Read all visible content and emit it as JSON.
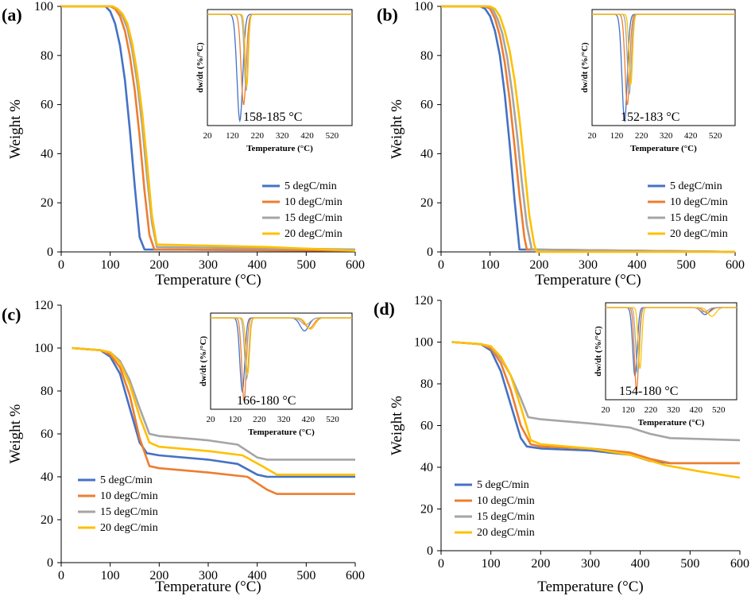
{
  "chart_data": [
    {
      "panel": "(a)",
      "type": "line",
      "xlabel": "Temperature (°C)",
      "ylabel": "Weight %",
      "xlim": [
        0,
        600
      ],
      "ylim": [
        0,
        100
      ],
      "xticks": [
        0,
        100,
        200,
        300,
        400,
        500,
        600
      ],
      "yticks": [
        0,
        20,
        40,
        60,
        80,
        100
      ],
      "legend_position": "right",
      "series": [
        {
          "name": "5 degC/min",
          "color": "#4472C4",
          "x": [
            0,
            90,
            100,
            110,
            120,
            130,
            140,
            150,
            160,
            170,
            600
          ],
          "y": [
            100,
            100,
            98,
            93,
            84,
            70,
            50,
            27,
            6,
            1,
            0.5
          ]
        },
        {
          "name": "10 degC/min",
          "color": "#ED7D31",
          "x": [
            0,
            100,
            110,
            120,
            130,
            140,
            150,
            160,
            170,
            180,
            190,
            600
          ],
          "y": [
            100,
            100,
            99,
            96,
            90,
            80,
            66,
            47,
            25,
            7,
            1,
            0.5
          ]
        },
        {
          "name": "15 degC/min",
          "color": "#A5A5A5",
          "x": [
            0,
            105,
            115,
            125,
            135,
            145,
            155,
            165,
            175,
            185,
            195,
            600
          ],
          "y": [
            100,
            100,
            99,
            96,
            91,
            82,
            69,
            52,
            31,
            12,
            2,
            1
          ]
        },
        {
          "name": "20 degC/min",
          "color": "#FFC000",
          "x": [
            0,
            105,
            115,
            125,
            135,
            145,
            155,
            165,
            175,
            185,
            195,
            420,
            600
          ],
          "y": [
            100,
            100,
            99,
            97,
            93,
            85,
            73,
            57,
            37,
            15,
            3,
            2,
            0.5
          ]
        }
      ],
      "inset": {
        "ylabel": "dw/dt (%/°C)",
        "xlabel": "Temperature (°C)",
        "xticks": [
          20,
          120,
          220,
          320,
          420,
          520
        ],
        "xlim": [
          20,
          600
        ],
        "annotation": "158-185 °C",
        "peaks": [
          {
            "peak_x": 150,
            "depth": 1.0,
            "width": 16
          },
          {
            "peak_x": 165,
            "depth": 0.85,
            "width": 14
          },
          {
            "peak_x": 175,
            "depth": 0.72,
            "width": 10
          },
          {
            "peak_x": 178,
            "depth": 0.68,
            "width": 9
          }
        ]
      }
    },
    {
      "panel": "(b)",
      "type": "line",
      "xlabel": "Temperature (°C)",
      "ylabel": "Weight %",
      "xlim": [
        0,
        600
      ],
      "ylim": [
        0,
        100
      ],
      "xticks": [
        0,
        100,
        200,
        300,
        400,
        500,
        600
      ],
      "yticks": [
        0,
        20,
        40,
        60,
        80,
        100
      ],
      "legend_position": "right",
      "series": [
        {
          "name": "5 degC/min",
          "color": "#4472C4",
          "x": [
            0,
            80,
            90,
            100,
            110,
            120,
            130,
            140,
            150,
            160,
            600
          ],
          "y": [
            100,
            100,
            99,
            96,
            90,
            80,
            64,
            44,
            21,
            1,
            0
          ]
        },
        {
          "name": "10 degC/min",
          "color": "#ED7D31",
          "x": [
            0,
            90,
            100,
            110,
            120,
            130,
            140,
            150,
            160,
            170,
            175,
            600
          ],
          "y": [
            100,
            100,
            99,
            95,
            88,
            77,
            62,
            43,
            23,
            6,
            1,
            0
          ]
        },
        {
          "name": "15 degC/min",
          "color": "#A5A5A5",
          "x": [
            0,
            95,
            105,
            115,
            125,
            135,
            145,
            155,
            165,
            175,
            185,
            600
          ],
          "y": [
            100,
            100,
            99,
            95,
            89,
            79,
            65,
            48,
            28,
            11,
            1,
            0
          ]
        },
        {
          "name": "20 degC/min",
          "color": "#FFC000",
          "x": [
            0,
            100,
            110,
            120,
            130,
            140,
            150,
            160,
            170,
            180,
            190,
            195,
            600
          ],
          "y": [
            100,
            100,
            99,
            96,
            90,
            82,
            70,
            54,
            35,
            15,
            3,
            0,
            0
          ]
        }
      ],
      "inset": {
        "ylabel": "dw/dt (%/°C)",
        "xlabel": "Temperature (°C)",
        "xticks": [
          20,
          120,
          220,
          320,
          420,
          520
        ],
        "xlim": [
          20,
          600
        ],
        "annotation": "152-183 °C",
        "peaks": [
          {
            "peak_x": 152,
            "depth": 1.0,
            "width": 15
          },
          {
            "peak_x": 163,
            "depth": 0.85,
            "width": 13
          },
          {
            "peak_x": 171,
            "depth": 0.75,
            "width": 11
          },
          {
            "peak_x": 177,
            "depth": 0.66,
            "width": 10
          }
        ]
      }
    },
    {
      "panel": "(c)",
      "type": "line",
      "xlabel": "Temperature (°C)",
      "ylabel": "Weight %",
      "xlim": [
        0,
        600
      ],
      "ylim": [
        0,
        120
      ],
      "xticks": [
        0,
        100,
        200,
        300,
        400,
        500,
        600
      ],
      "yticks": [
        0,
        20,
        40,
        60,
        80,
        100,
        120
      ],
      "legend_position": "bottom-left",
      "series": [
        {
          "name": "5 degC/min",
          "color": "#4472C4",
          "x": [
            22,
            80,
            100,
            120,
            140,
            160,
            175,
            200,
            300,
            360,
            400,
            420,
            600
          ],
          "y": [
            100,
            99,
            96,
            88,
            72,
            56,
            51,
            50,
            48,
            46,
            41,
            40,
            40
          ]
        },
        {
          "name": "10 degC/min",
          "color": "#ED7D31",
          "x": [
            22,
            80,
            100,
            120,
            140,
            160,
            180,
            200,
            300,
            380,
            420,
            440,
            600
          ],
          "y": [
            100,
            99,
            97,
            91,
            78,
            58,
            45,
            44,
            42,
            40,
            34,
            32,
            32
          ]
        },
        {
          "name": "15 degC/min",
          "color": "#A5A5A5",
          "x": [
            22,
            80,
            100,
            120,
            140,
            160,
            180,
            200,
            300,
            360,
            400,
            420,
            600
          ],
          "y": [
            100,
            99,
            98,
            94,
            85,
            72,
            60,
            59,
            57,
            55,
            49,
            48,
            48
          ]
        },
        {
          "name": "20 degC/min",
          "color": "#FFC000",
          "x": [
            22,
            80,
            100,
            120,
            140,
            160,
            180,
            200,
            300,
            370,
            410,
            440,
            600
          ],
          "y": [
            100,
            99,
            98,
            93,
            83,
            68,
            56,
            54,
            52,
            50,
            45,
            41,
            41
          ]
        }
      ],
      "inset": {
        "ylabel": "dw/dt (%/°C)",
        "xlabel": "Temperature (°C)",
        "xticks": [
          20,
          120,
          220,
          320,
          420,
          520
        ],
        "xlim": [
          20,
          600
        ],
        "annotation": "166-180 °C",
        "peaks": [
          {
            "peak_x": 150,
            "depth": 0.85,
            "width": 14,
            "peak2_x": 405,
            "depth2": 0.15
          },
          {
            "peak_x": 157,
            "depth": 0.95,
            "width": 13,
            "peak2_x": 425,
            "depth2": 0.12
          },
          {
            "peak_x": 168,
            "depth": 0.7,
            "width": 12,
            "peak2_x": 410,
            "depth2": 0.08
          },
          {
            "peak_x": 172,
            "depth": 0.65,
            "width": 11,
            "peak2_x": 430,
            "depth2": 0.13
          }
        ]
      }
    },
    {
      "panel": "(d)",
      "type": "line",
      "xlabel": "Temperature (°C)",
      "ylabel": "Weight %",
      "xlim": [
        0,
        600
      ],
      "ylim": [
        0,
        120
      ],
      "xticks": [
        0,
        100,
        200,
        300,
        400,
        500,
        600
      ],
      "yticks": [
        0,
        20,
        40,
        60,
        80,
        100,
        120
      ],
      "legend_position": "bottom-left",
      "series": [
        {
          "name": "5 degC/min",
          "color": "#4472C4",
          "x": [
            22,
            80,
            100,
            120,
            140,
            160,
            172,
            200,
            300,
            380,
            420,
            460,
            600
          ],
          "y": [
            100,
            99,
            96,
            86,
            70,
            54,
            50,
            49,
            48,
            46,
            43,
            42,
            42
          ]
        },
        {
          "name": "10 degC/min",
          "color": "#ED7D31",
          "x": [
            22,
            80,
            100,
            120,
            140,
            160,
            180,
            200,
            300,
            380,
            420,
            460,
            600
          ],
          "y": [
            100,
            99,
            97,
            90,
            77,
            60,
            51,
            50,
            49,
            47,
            44,
            42,
            42
          ]
        },
        {
          "name": "15 degC/min",
          "color": "#A5A5A5",
          "x": [
            22,
            80,
            100,
            120,
            140,
            160,
            175,
            200,
            300,
            380,
            420,
            460,
            600
          ],
          "y": [
            100,
            99,
            98,
            92,
            84,
            73,
            64,
            63,
            61,
            59,
            56,
            54,
            53
          ]
        },
        {
          "name": "20 degC/min",
          "color": "#FFC000",
          "x": [
            22,
            80,
            100,
            120,
            140,
            160,
            180,
            200,
            300,
            380,
            450,
            520,
            600
          ],
          "y": [
            100,
            99,
            98,
            93,
            84,
            69,
            53,
            51,
            49,
            46,
            41,
            38,
            35
          ]
        }
      ],
      "inset": {
        "ylabel": "dw/dt (%/°C)",
        "xlabel": "Temperature (°C)",
        "xticks": [
          20,
          120,
          220,
          320,
          420,
          520
        ],
        "xlim": [
          20,
          600
        ],
        "annotation": "154-180 °C",
        "peaks": [
          {
            "peak_x": 150,
            "depth": 0.78,
            "width": 14,
            "peak2_x": 460,
            "depth2": 0.08
          },
          {
            "peak_x": 157,
            "depth": 0.95,
            "width": 13,
            "peak2_x": 470,
            "depth2": 0.06
          },
          {
            "peak_x": 162,
            "depth": 0.75,
            "width": 12,
            "peak2_x": 455,
            "depth2": 0.05
          },
          {
            "peak_x": 172,
            "depth": 0.7,
            "width": 11,
            "peak2_x": 490,
            "depth2": 0.1
          }
        ]
      }
    }
  ]
}
